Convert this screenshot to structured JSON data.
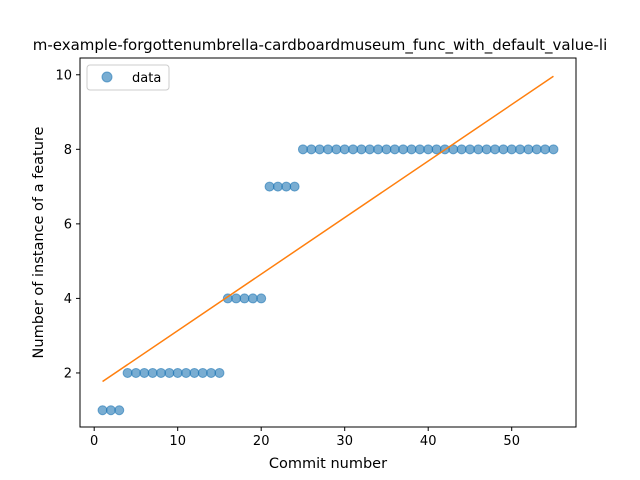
{
  "chart_data": {
    "type": "scatter",
    "title": "m-example-forgottenumbrella-cardboardmuseum_func_with_default_value-li",
    "xlabel": "Commit number",
    "ylabel": "Number of instance of a feature",
    "xlim": [
      -1.7,
      57.7
    ],
    "ylim": [
      0.55,
      10.45
    ],
    "xticks": [
      0,
      10,
      20,
      30,
      40,
      50
    ],
    "yticks": [
      2,
      4,
      6,
      8,
      10
    ],
    "legend": {
      "placement": "top-left",
      "entries": [
        "data"
      ]
    },
    "grid": false,
    "series": [
      {
        "name": "data",
        "kind": "scatter",
        "color": "#1f77b4",
        "x": [
          1,
          2,
          3,
          4,
          5,
          6,
          7,
          8,
          9,
          10,
          11,
          12,
          13,
          14,
          15,
          16,
          17,
          18,
          19,
          20,
          21,
          22,
          23,
          24,
          25,
          26,
          27,
          28,
          29,
          30,
          31,
          32,
          33,
          34,
          35,
          36,
          37,
          38,
          39,
          40,
          41,
          42,
          43,
          44,
          45,
          46,
          47,
          48,
          49,
          50,
          51,
          52,
          53,
          54,
          55
        ],
        "y": [
          1,
          1,
          1,
          2,
          2,
          2,
          2,
          2,
          2,
          2,
          2,
          2,
          2,
          2,
          2,
          4,
          4,
          4,
          4,
          4,
          7,
          7,
          7,
          7,
          8,
          8,
          8,
          8,
          8,
          8,
          8,
          8,
          8,
          8,
          8,
          8,
          8,
          8,
          8,
          8,
          8,
          8,
          8,
          8,
          8,
          8,
          8,
          8,
          8,
          8,
          8,
          8,
          8,
          8,
          8
        ]
      },
      {
        "kind": "line",
        "color": "#ff7f0e",
        "x": [
          1,
          55
        ],
        "y": [
          1.77,
          9.96
        ]
      }
    ]
  }
}
